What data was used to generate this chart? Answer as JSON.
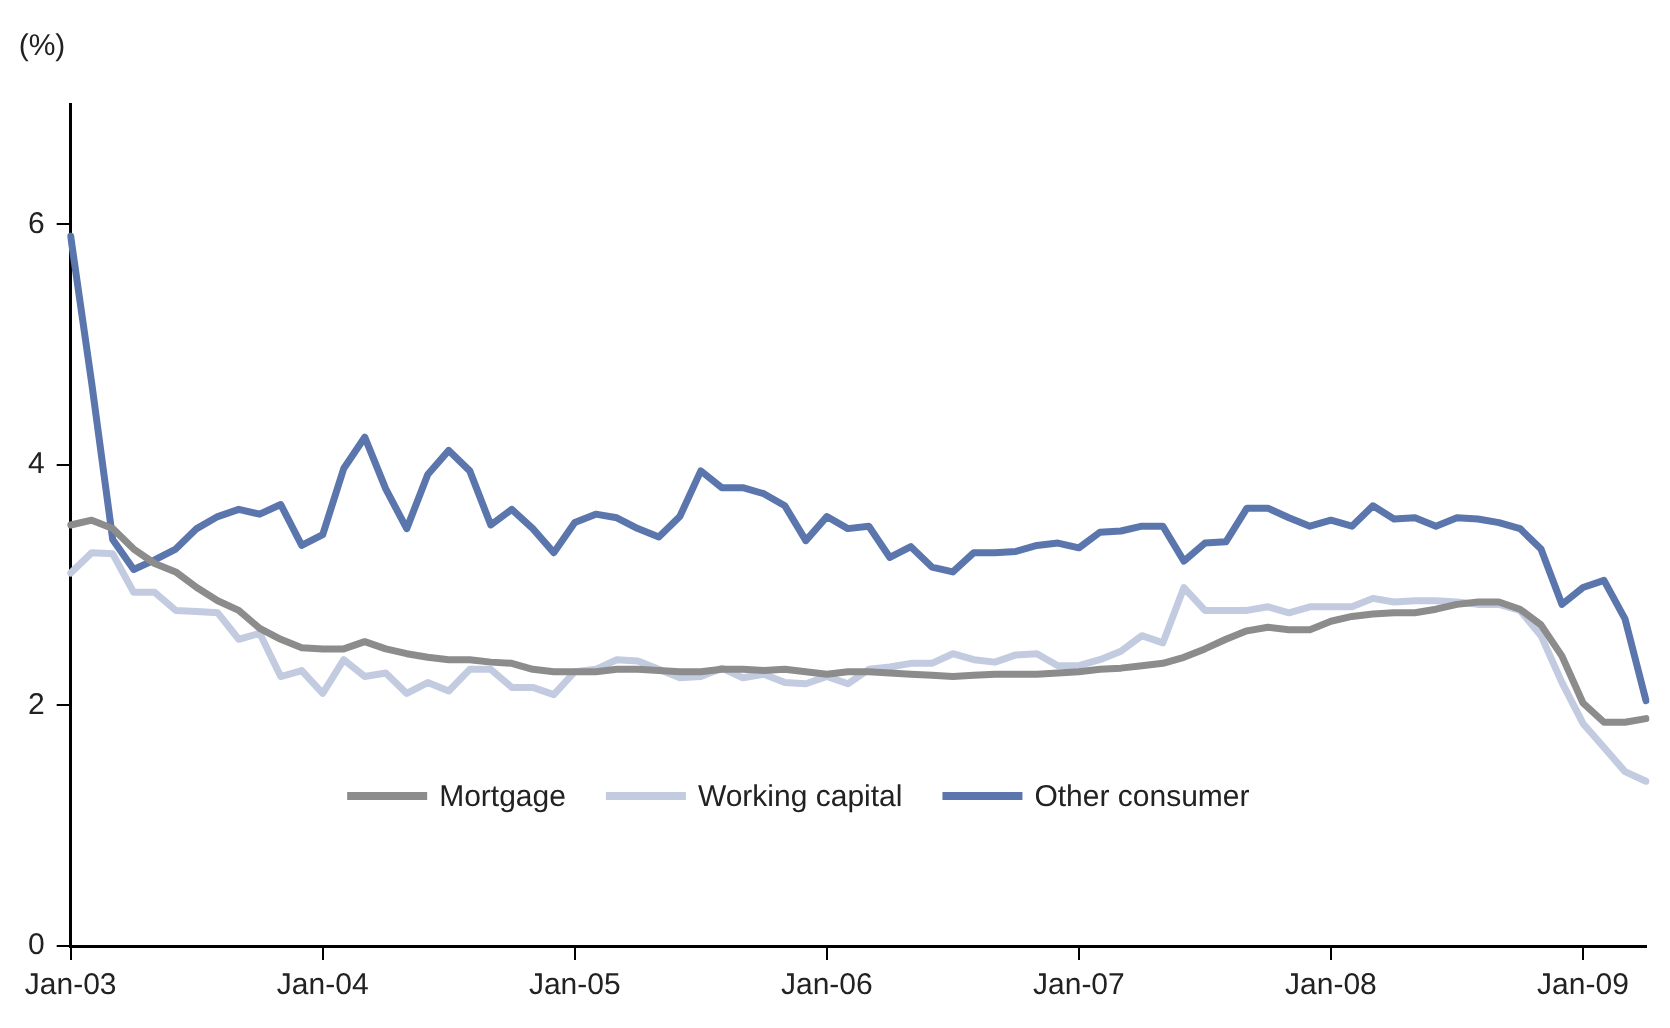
{
  "chart_data": {
    "type": "line",
    "ylabel": "(%)",
    "categories": [
      "Jan-03",
      null,
      null,
      null,
      null,
      null,
      null,
      null,
      null,
      null,
      null,
      null,
      "Jan-04",
      null,
      null,
      null,
      null,
      null,
      null,
      null,
      null,
      null,
      null,
      null,
      "Jan-05",
      null,
      null,
      null,
      null,
      null,
      null,
      null,
      null,
      null,
      null,
      null,
      "Jan-06",
      null,
      null,
      null,
      null,
      null,
      null,
      null,
      null,
      null,
      null,
      null,
      "Jan-07",
      null,
      null,
      null,
      null,
      null,
      null,
      null,
      null,
      null,
      null,
      null,
      "Jan-08",
      null,
      null,
      null,
      null,
      null,
      null,
      null,
      null,
      null,
      null,
      null,
      "Jan-09",
      null,
      null,
      null
    ],
    "series": [
      {
        "name": "Mortgage",
        "color": "#8c8c8c",
        "values": [
          3.5,
          3.54,
          3.47,
          3.3,
          3.18,
          3.11,
          2.98,
          2.87,
          2.79,
          2.64,
          2.55,
          2.48,
          2.47,
          2.47,
          2.53,
          2.47,
          2.43,
          2.4,
          2.38,
          2.38,
          2.36,
          2.35,
          2.3,
          2.28,
          2.28,
          2.28,
          2.3,
          2.3,
          2.29,
          2.28,
          2.28,
          2.3,
          2.3,
          2.29,
          2.3,
          2.28,
          2.26,
          2.28,
          2.28,
          2.27,
          2.26,
          2.25,
          2.24,
          2.25,
          2.26,
          2.26,
          2.26,
          2.27,
          2.28,
          2.3,
          2.31,
          2.33,
          2.35,
          2.4,
          2.47,
          2.55,
          2.62,
          2.65,
          2.63,
          2.63,
          2.7,
          2.74,
          2.76,
          2.77,
          2.77,
          2.8,
          2.84,
          2.86,
          2.86,
          2.8,
          2.67,
          2.41,
          2.02,
          1.86,
          1.86,
          1.89
        ]
      },
      {
        "name": "Working capital",
        "color": "#c3cbe0",
        "values": [
          3.1,
          3.27,
          3.26,
          2.94,
          2.94,
          2.79,
          2.78,
          2.77,
          2.55,
          2.6,
          2.24,
          2.29,
          2.1,
          2.38,
          2.24,
          2.27,
          2.1,
          2.19,
          2.12,
          2.3,
          2.3,
          2.15,
          2.15,
          2.09,
          2.28,
          2.3,
          2.38,
          2.37,
          2.3,
          2.23,
          2.24,
          2.31,
          2.23,
          2.26,
          2.19,
          2.18,
          2.24,
          2.18,
          2.3,
          2.32,
          2.35,
          2.35,
          2.43,
          2.38,
          2.36,
          2.42,
          2.43,
          2.33,
          2.33,
          2.38,
          2.45,
          2.58,
          2.52,
          2.98,
          2.79,
          2.79,
          2.79,
          2.82,
          2.77,
          2.82,
          2.82,
          2.82,
          2.89,
          2.86,
          2.87,
          2.87,
          2.86,
          2.84,
          2.84,
          2.79,
          2.58,
          2.19,
          1.85,
          1.65,
          1.45,
          1.37
        ]
      },
      {
        "name": "Other consumer",
        "color": "#5b75ad",
        "values": [
          5.9,
          4.68,
          3.38,
          3.13,
          3.21,
          3.3,
          3.47,
          3.57,
          3.63,
          3.59,
          3.67,
          3.33,
          3.42,
          3.97,
          4.23,
          3.8,
          3.47,
          3.92,
          4.12,
          3.95,
          3.5,
          3.63,
          3.47,
          3.27,
          3.52,
          3.59,
          3.56,
          3.47,
          3.4,
          3.57,
          3.95,
          3.81,
          3.81,
          3.76,
          3.66,
          3.37,
          3.57,
          3.47,
          3.49,
          3.23,
          3.32,
          3.15,
          3.11,
          3.27,
          3.27,
          3.28,
          3.33,
          3.35,
          3.31,
          3.44,
          3.45,
          3.49,
          3.49,
          3.2,
          3.35,
          3.36,
          3.64,
          3.64,
          3.56,
          3.49,
          3.54,
          3.49,
          3.66,
          3.55,
          3.56,
          3.49,
          3.56,
          3.55,
          3.52,
          3.47,
          3.3,
          2.84,
          2.98,
          3.04,
          2.72,
          2.04
        ]
      }
    ],
    "ylim": [
      0,
      7
    ],
    "yticks": [
      0,
      2,
      4,
      6
    ],
    "grid": false,
    "legend": "bottom",
    "marker": "none",
    "line_style": "solid"
  }
}
